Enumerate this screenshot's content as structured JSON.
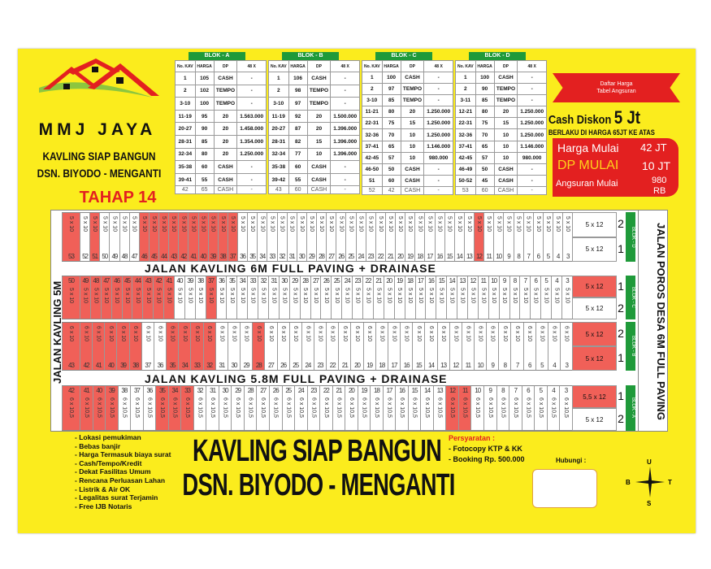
{
  "brand": {
    "name": "MMJ JAYA",
    "line1": "KAVLING SIAP BANGUN",
    "line2": "DSN. BIYODO - MENGANTI",
    "phase": "TAHAP 14"
  },
  "colors": {
    "yellow": "#fbec1d",
    "red": "#e32020",
    "green": "#1f9a3a",
    "sold": "#f06058"
  },
  "tables": [
    {
      "title": "BLOK - A",
      "headers": [
        "No. KAV",
        "HARGA",
        "DP",
        "48 X"
      ],
      "rows": [
        [
          "1",
          "105",
          "CASH",
          "-"
        ],
        [
          "2",
          "102",
          "TEMPO",
          "-"
        ],
        [
          "3-10",
          "100",
          "TEMPO",
          "-"
        ],
        [
          "11-19",
          "95",
          "20",
          "1.563.000"
        ],
        [
          "20-27",
          "90",
          "20",
          "1.458.000"
        ],
        [
          "28-31",
          "85",
          "20",
          "1.354.000"
        ],
        [
          "32-34",
          "80",
          "20",
          "1.250.000"
        ],
        [
          "35-38",
          "60",
          "CASH",
          "-"
        ],
        [
          "39-41",
          "55",
          "CASH",
          "-"
        ]
      ],
      "last": [
        "42",
        "65",
        "CASH",
        "-"
      ]
    },
    {
      "title": "BLOK - B",
      "headers": [
        "No. KAV",
        "HARGA",
        "DP",
        "48 X"
      ],
      "rows": [
        [
          "1",
          "106",
          "CASH",
          "-"
        ],
        [
          "2",
          "98",
          "TEMPO",
          "-"
        ],
        [
          "3-10",
          "97",
          "TEMPO",
          "-"
        ],
        [
          "11-19",
          "92",
          "20",
          "1.500.000"
        ],
        [
          "20-27",
          "87",
          "20",
          "1.396.000"
        ],
        [
          "28-31",
          "82",
          "15",
          "1.396.000"
        ],
        [
          "32-34",
          "77",
          "10",
          "1.396.000"
        ],
        [
          "35-38",
          "60",
          "CASH",
          "-"
        ],
        [
          "39-42",
          "55",
          "CASH",
          "-"
        ]
      ],
      "last": [
        "43",
        "60",
        "CASH",
        "-"
      ]
    },
    {
      "title": "BLOK - C",
      "headers": [
        "No. KAV",
        "HARGA",
        "DP",
        "48 X"
      ],
      "rows": [
        [
          "1",
          "100",
          "CASH",
          "-"
        ],
        [
          "2",
          "97",
          "TEMPO",
          "-"
        ],
        [
          "3-10",
          "85",
          "TEMPO",
          "-"
        ],
        [
          "11-21",
          "80",
          "20",
          "1.250.000"
        ],
        [
          "22-31",
          "75",
          "15",
          "1.250.000"
        ],
        [
          "32-36",
          "70",
          "10",
          "1.250.000"
        ],
        [
          "37-41",
          "65",
          "10",
          "1.146.000"
        ],
        [
          "42-45",
          "57",
          "10",
          "980.000"
        ],
        [
          "46-50",
          "50",
          "CASH",
          "-"
        ],
        [
          "51",
          "60",
          "CASH",
          "-"
        ]
      ],
      "last": [
        "52",
        "42",
        "CASH",
        "-"
      ]
    },
    {
      "title": "BLOK - D",
      "headers": [
        "No. KAV",
        "HARGA",
        "DP",
        "48 X"
      ],
      "rows": [
        [
          "1",
          "100",
          "CASH",
          "-"
        ],
        [
          "2",
          "90",
          "TEMPO",
          "-"
        ],
        [
          "3-11",
          "85",
          "TEMPO",
          "-"
        ],
        [
          "12-21",
          "80",
          "20",
          "1.250.000"
        ],
        [
          "22-31",
          "75",
          "15",
          "1.250.000"
        ],
        [
          "32-36",
          "70",
          "10",
          "1.250.000"
        ],
        [
          "37-41",
          "65",
          "10",
          "1.146.000"
        ],
        [
          "42-45",
          "57",
          "10",
          "980.000"
        ],
        [
          "46-49",
          "50",
          "CASH",
          "-"
        ],
        [
          "50-52",
          "45",
          "CASH",
          "-"
        ]
      ],
      "last": [
        "53",
        "60",
        "CASH",
        "-"
      ]
    }
  ],
  "promo": {
    "ribbon1": "Daftar Harga",
    "ribbon2": "Tabel Angsuran",
    "cash_prefix": "Cash Diskon",
    "cash_value": "5 Jt",
    "berlaku": "BERLAKU DI HARGA 65JT KE ATAS",
    "harga_label": "Harga Mulai",
    "harga_value": "42 JT",
    "dp_label": "DP MULAI",
    "dp_value": "10 JT",
    "angsuran_label": "Angsuran Mulai",
    "angsuran_value1": "980",
    "angsuran_value2": "RB"
  },
  "map": {
    "road_left": "JALAN KAVLING 5M",
    "road_right": "JALAN POROS DESA 6M FULL PAVING",
    "road_top": "JALAN KAVLING 6M FULL PAVING + DRAINASE",
    "road_bottom": "JALAN KAVLING 5.8M FULL PAVING + DRAINASE",
    "blocks": [
      {
        "name": "BLOK - D",
        "from": 53,
        "to": 3,
        "size": "5 x 10",
        "num_pos": "bottom",
        "sold": [
          53,
          51,
          46,
          45,
          44,
          43,
          42,
          41,
          40,
          39,
          38,
          37,
          12
        ],
        "big": [
          {
            "n": "2",
            "size": "5 x 12",
            "sold": false
          },
          {
            "n": "1",
            "size": "5 x 12",
            "sold": false
          }
        ]
      },
      {
        "name": "BLOK - C",
        "from": 50,
        "to": 3,
        "size": "5 x 10",
        "num_pos": "top",
        "corner": "10",
        "sold": [
          50,
          49,
          48,
          47,
          46,
          45,
          44,
          43,
          42,
          41,
          37
        ],
        "corner_sold": true,
        "big": [
          {
            "n": "1",
            "size": "5 x 12",
            "sold": true
          },
          {
            "n": "2",
            "size": "5 x 12",
            "sold": false
          }
        ]
      },
      {
        "name": "BLOK - B",
        "from": 43,
        "to": 3,
        "size": "6 x 10",
        "num_pos": "bottom",
        "sold": [
          43,
          42,
          41,
          40,
          39,
          38,
          35,
          34,
          33,
          32,
          28
        ],
        "big": [
          {
            "n": "2",
            "size": "5 x 12",
            "sold": true
          },
          {
            "n": "1",
            "size": "5 x 12",
            "sold": true
          }
        ]
      },
      {
        "name": "BLOK - A",
        "from": 42,
        "to": 3,
        "size": "6 x 10,5",
        "num_pos": "top",
        "sold": [
          42,
          41,
          40,
          39,
          35,
          34,
          33,
          12,
          11
        ],
        "big": [
          {
            "n": "1",
            "size": "5,5 x 12",
            "sold": true
          },
          {
            "n": "2",
            "size": "5 x 12",
            "sold": false
          }
        ]
      }
    ]
  },
  "features": [
    "- Lokasi pemukiman",
    "- Bebas banjir",
    "- Harga Termasuk biaya surat",
    "- Cash/Tempo/Kredit",
    "- Dekat Fasilitas Umum",
    "- Rencana Perluasan Lahan",
    "- Listrik & Air OK",
    "- Legalitas surat Terjamin",
    "- Free IJB Notaris"
  ],
  "headline": {
    "line1": "KAVLING SIAP BANGUN",
    "line2": "DSN. BIYODO - MENGANTI"
  },
  "requirements": {
    "title": "Persyaratan :",
    "items": [
      "- Fotocopy KTP & KK",
      "- Booking Rp. 500.000"
    ]
  },
  "contact": {
    "label": "Hubungi :"
  },
  "compass": {
    "n": "U",
    "s": "S",
    "w": "B",
    "e": "T"
  }
}
